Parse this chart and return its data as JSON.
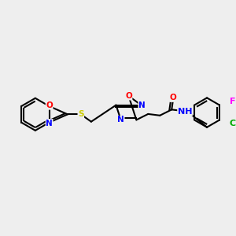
{
  "bg_color": "#eeeeee",
  "bond_color": "#000000",
  "atom_colors": {
    "N": "#0000ff",
    "O": "#ff0000",
    "S": "#cccc00",
    "Cl": "#00aa00",
    "F": "#ff00ff",
    "C": "#000000",
    "H": "#000000"
  },
  "font_size": 7.5,
  "bond_width": 1.5
}
